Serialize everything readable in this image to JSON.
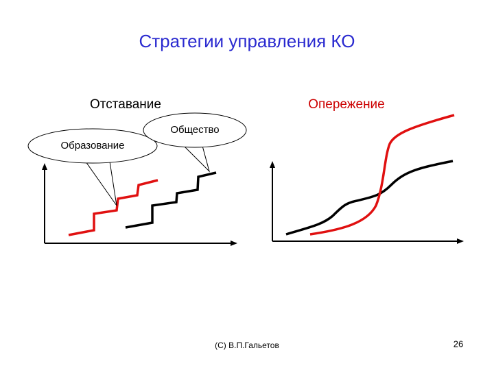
{
  "title": "Стратегии управления КО",
  "left_panel": {
    "label": "Отставание",
    "callouts": [
      "Образование",
      "Общество"
    ]
  },
  "right_panel": {
    "label": "Опережение"
  },
  "footer": {
    "author": "(С) В.П.Гальетов",
    "page_number": 26
  }
}
